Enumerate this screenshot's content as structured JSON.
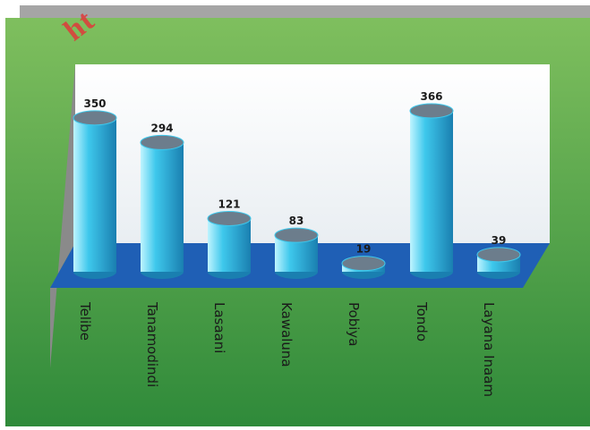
{
  "watermark": "ht",
  "colors": {
    "panel_top": "#7fbf5e",
    "panel_bottom": "#2f8a3a",
    "wall": "#ffffff",
    "side_wall": "#8a8a8a",
    "floor": "#1f5fb5",
    "bar_light": "#bff4ff",
    "bar_mid": "#3ec8ec",
    "bar_dark": "#1a7fb0",
    "bar_top": "#6c7d8c",
    "label": "#1a1a1a"
  },
  "chart_data": {
    "type": "bar",
    "style": "3d-cylinder",
    "categories": [
      "Telibe",
      "Tanamodindi",
      "Lasaani",
      "Kawaluna",
      "Pobiya",
      "Tondo",
      "Layana Inaam"
    ],
    "values": [
      350,
      294,
      121,
      83,
      19,
      366,
      39
    ],
    "title": "",
    "xlabel": "",
    "ylabel": "",
    "ylim": [
      0,
      400
    ],
    "grid": false,
    "legend": false
  }
}
